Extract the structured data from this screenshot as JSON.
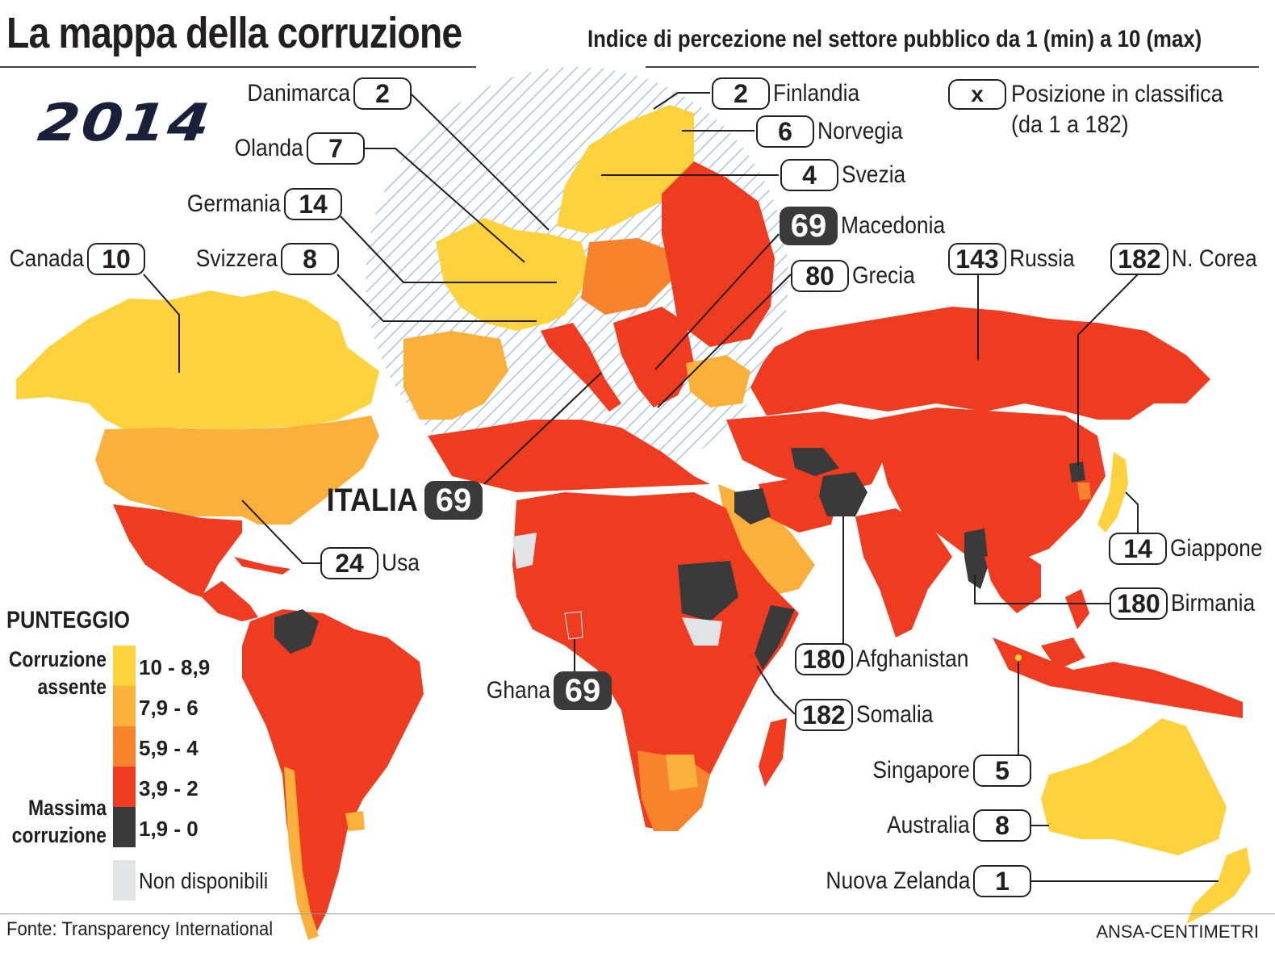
{
  "title": "La mappa della corruzione",
  "subtitle": "Indice di percezione nel settore pubblico da 1 (min) a 10 (max)",
  "year": "2014",
  "key": {
    "symbol": "x",
    "line1": "Posizione in classifica",
    "line2": "(da 1 a 182)"
  },
  "legend": {
    "title": "PUNTEGGIO",
    "top_label_1": "Corruzione",
    "top_label_2": "assente",
    "bottom_label_1": "Massima",
    "bottom_label_2": "corruzione",
    "classes": [
      {
        "range": "10 - 8,9",
        "color": "#fdd23c"
      },
      {
        "range": "7,9 - 6",
        "color": "#fbb03b"
      },
      {
        "range": "5,9 - 4",
        "color": "#f7842d"
      },
      {
        "range": "3,9 - 2",
        "color": "#ef3b1f"
      },
      {
        "range": "1,9 - 0",
        "color": "#3a3a3a"
      }
    ],
    "na_label": "Non disponibili",
    "na_color": "#e2e3e5"
  },
  "callouts": {
    "danimarca": {
      "name": "Danimarca",
      "rank": "2"
    },
    "olanda": {
      "name": "Olanda",
      "rank": "7"
    },
    "germania": {
      "name": "Germania",
      "rank": "14"
    },
    "svizzera": {
      "name": "Svizzera",
      "rank": "8"
    },
    "canada": {
      "name": "Canada",
      "rank": "10"
    },
    "finlandia": {
      "name": "Finlandia",
      "rank": "2"
    },
    "norvegia": {
      "name": "Norvegia",
      "rank": "6"
    },
    "svezia": {
      "name": "Svezia",
      "rank": "4"
    },
    "macedonia": {
      "name": "Macedonia",
      "rank": "69"
    },
    "grecia": {
      "name": "Grecia",
      "rank": "80"
    },
    "russia": {
      "name": "Russia",
      "rank": "143"
    },
    "ncorea": {
      "name": "N. Corea",
      "rank": "182"
    },
    "italia": {
      "name": "ITALIA",
      "rank": "69"
    },
    "usa": {
      "name": "Usa",
      "rank": "24"
    },
    "giappone": {
      "name": "Giappone",
      "rank": "14"
    },
    "birmania": {
      "name": "Birmania",
      "rank": "180"
    },
    "afghanistan": {
      "name": "Afghanistan",
      "rank": "180"
    },
    "ghana": {
      "name": "Ghana",
      "rank": "69"
    },
    "somalia": {
      "name": "Somalia",
      "rank": "182"
    },
    "singapore": {
      "name": "Singapore",
      "rank": "5"
    },
    "australia": {
      "name": "Australia",
      "rank": "8"
    },
    "nzelanda": {
      "name": "Nuova Zelanda",
      "rank": "1"
    }
  },
  "source": "Fonte: Transparency International",
  "credit": "ANSA-CENTIMETRI"
}
